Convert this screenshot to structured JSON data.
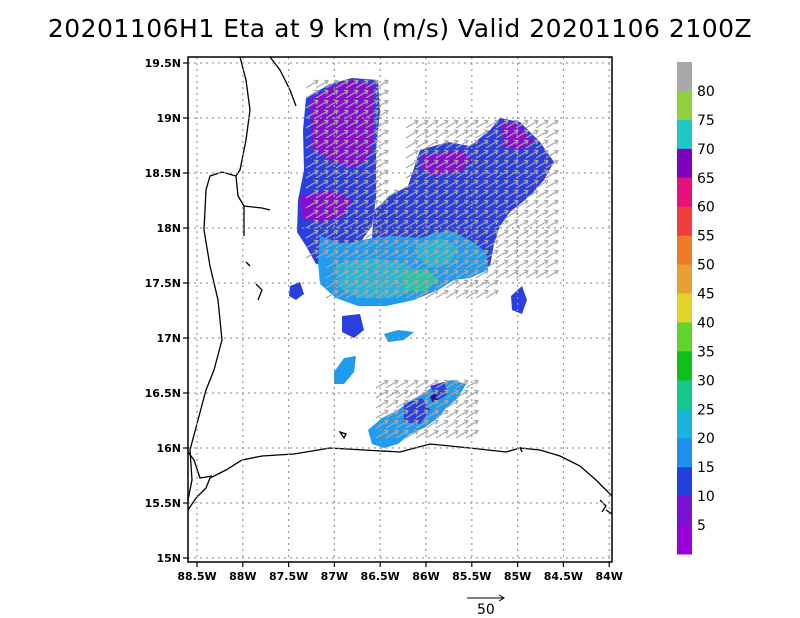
{
  "title": "20201106H1 Eta at 9 km (m/s) Valid 20201106 2100Z",
  "axes": {
    "x_ticks": [
      "88.5W",
      "88W",
      "87.5W",
      "87W",
      "86.5W",
      "86W",
      "85.5W",
      "85W",
      "84.5W",
      "84W"
    ],
    "y_ticks": [
      "19.5N",
      "19N",
      "18.5N",
      "18N",
      "17.5N",
      "17N",
      "16.5N",
      "16N",
      "15.5N",
      "15N"
    ]
  },
  "colorbar": {
    "labels": [
      "80",
      "75",
      "70",
      "65",
      "60",
      "55",
      "50",
      "45",
      "40",
      "35",
      "30",
      "25",
      "20",
      "15",
      "10",
      "5"
    ],
    "colors": [
      "#a9a9a9",
      "#8fd13f",
      "#1ec8c8",
      "#8000c0",
      "#e8107a",
      "#f03c3c",
      "#ee7b28",
      "#e8a030",
      "#e2d22a",
      "#60d42a",
      "#10c018",
      "#14c890",
      "#18b4dc",
      "#1e90f0",
      "#2040e0",
      "#7a10d0",
      "#9c00d8"
    ]
  },
  "reference_vector": {
    "label": "50"
  },
  "chart_data": {
    "type": "map",
    "title": "20201106H1 Eta at 9 km (m/s) Valid 20201106 2100Z",
    "lon_range": [
      -88.6,
      -84.0
    ],
    "lat_range": [
      14.95,
      19.5
    ],
    "grid": true,
    "colorbar_levels": [
      5,
      10,
      15,
      20,
      25,
      30,
      35,
      40,
      45,
      50,
      55,
      60,
      65,
      70,
      75,
      80
    ]
  }
}
